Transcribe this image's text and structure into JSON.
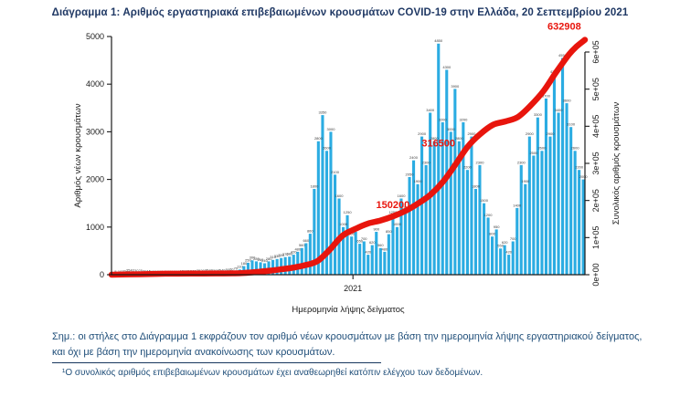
{
  "figure": {
    "title": "Διάγραμμα 1: Αριθμός εργαστηριακά επιβεβαιωμένων κρουσμάτων COVID-19 στην Ελλάδα, 20 Σεπτεμβρίου 2021"
  },
  "notes": {
    "note": "Σημ.: οι στήλες στο Διάγραμμα 1 εκφράζουν τον αριθμό νέων κρουσμάτων με βάση την ημερομηνία λήψης εργαστηριακού δείγματος, και όχι με βάση την ημερομηνία ανακοίνωσης των κρουσμάτων.",
    "footnote": "¹Ο συνολικός αριθμός επιβεβαιωμένων κρουσμάτων έχει αναθεωρηθεί κατόπιν ελέγχου των δεδομένων."
  },
  "colors": {
    "bar": "#2BACE2",
    "line": "#E8150D",
    "title": "#1F3864",
    "note_text": "#1F4E79"
  },
  "chart_data": {
    "type": "bar+line",
    "title": "Διάγραμμα 1: Αριθμός εργαστηριακά επιβεβαιωμένων κρουσμάτων COVID-19 στην Ελλάδα, 20 Σεπτεμβρίου 2021",
    "x_axis": {
      "label": "Ημερομηνία λήψης δείγματος",
      "tick_labels": [
        "2021"
      ],
      "tick_fracs": [
        0.51
      ]
    },
    "left_axis": {
      "label": "Αριθμός νέων κρουσμάτων",
      "ticks": [
        0,
        1000,
        2000,
        3000,
        4000,
        5000
      ],
      "max": 5000
    },
    "right_axis": {
      "label": "Συνολικός αριθμός κρουσμάτων",
      "ticks": [
        "0e+00",
        "1e+05",
        "2e+05",
        "3e+05",
        "4e+05",
        "5e+05",
        "6e+05"
      ],
      "max": 600000
    },
    "grid": false,
    "legend": "none",
    "bars": {
      "series_name": "new-cases-by-sampling-date",
      "sample_step_days": 5,
      "timeline_days": 572,
      "values": [
        1,
        5,
        10,
        20,
        35,
        40,
        30,
        25,
        20,
        15,
        12,
        10,
        10,
        8,
        10,
        12,
        10,
        15,
        18,
        15,
        20,
        25,
        30,
        35,
        40,
        30,
        35,
        40,
        50,
        60,
        70,
        110,
        180,
        250,
        300,
        280,
        260,
        240,
        280,
        310,
        330,
        350,
        370,
        380,
        420,
        480,
        560,
        660,
        860,
        1800,
        2800,
        3350,
        2600,
        3000,
        2100,
        1600,
        1000,
        1250,
        800,
        900,
        650,
        700,
        420,
        620,
        900,
        560,
        480,
        850,
        1250,
        1000,
        1600,
        1350,
        2050,
        2400,
        1900,
        2900,
        2300,
        3400,
        2800,
        4850,
        3200,
        4300,
        3000,
        3900,
        2800,
        3200,
        2200,
        2900,
        1800,
        2300,
        1500,
        1200,
        800,
        950,
        550,
        620,
        420,
        700,
        1400,
        2300,
        1900,
        2900,
        2500,
        3300,
        2600,
        3700,
        2900,
        4200,
        3400,
        4550,
        3600,
        3100,
        2600,
        2200,
        2000
      ]
    },
    "line": {
      "series_name": "cumulative-confirmed-cases",
      "points": [
        [
          0,
          0
        ],
        [
          35,
          1300
        ],
        [
          65,
          2600
        ],
        [
          96,
          2900
        ],
        [
          126,
          3400
        ],
        [
          157,
          4400
        ],
        [
          188,
          10000
        ],
        [
          203,
          14000
        ],
        [
          218,
          18500
        ],
        [
          233,
          25000
        ],
        [
          249,
          37000
        ],
        [
          264,
          68000
        ],
        [
          279,
          105000
        ],
        [
          295,
          124000
        ],
        [
          310,
          138000
        ],
        [
          325,
          146000
        ],
        [
          341,
          158000
        ],
        [
          355,
          172000
        ],
        [
          369,
          190000
        ],
        [
          385,
          215000
        ],
        [
          400,
          249000
        ],
        [
          415,
          295000
        ],
        [
          430,
          344000
        ],
        [
          445,
          378000
        ],
        [
          461,
          404000
        ],
        [
          476,
          413000
        ],
        [
          491,
          425000
        ],
        [
          506,
          455000
        ],
        [
          522,
          495000
        ],
        [
          537,
          545000
        ],
        [
          553,
          594000
        ],
        [
          562,
          615000
        ],
        [
          572,
          632908
        ]
      ]
    },
    "annotations": [
      {
        "text": "150200",
        "d": 340,
        "v": 180000
      },
      {
        "text": "316500",
        "d": 395,
        "v": 346000
      },
      {
        "text": "632908",
        "d": 547,
        "v": 660000
      }
    ]
  }
}
